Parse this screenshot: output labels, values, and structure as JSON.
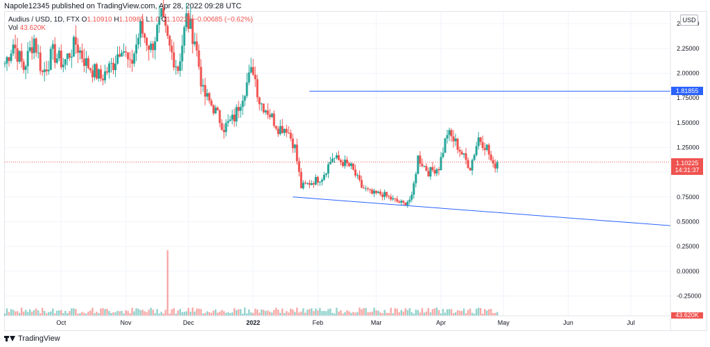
{
  "header": {
    "published_line": "Napole12345 published on TradingView.com, Apr 28, 2022 09:28 UTC"
  },
  "legend": {
    "symbol": "Audius / USD, 1D, FTX",
    "o_label": "O",
    "o": "1.10910",
    "h_label": "H",
    "h": "1.10985",
    "l_label": "L",
    "l": "1.0",
    "c_label": "C",
    "c": "1.10225",
    "change": "−0.00685 (−0.62%)",
    "vol_label": "Vol",
    "vol": "43.620K"
  },
  "currency_button": "USD",
  "footer": {
    "brand": "TradingView"
  },
  "colors": {
    "up": "#26a69a",
    "down": "#ef5350",
    "trendline": "#2962ff",
    "grid": "#f0f3fa"
  },
  "chart_data": {
    "type": "candlestick",
    "y_ticks": [
      "2.50000",
      "2.25000",
      "2.00000",
      "1.75000",
      "1.50000",
      "1.25000",
      "1.00000",
      "0.75000",
      "0.50000",
      "0.25000",
      "0.00000",
      "-0.25000"
    ],
    "ylim": [
      -0.45,
      2.62
    ],
    "x_ticks": [
      "Oct",
      "Nov",
      "Dec",
      "2022",
      "Feb",
      "Mar",
      "Apr",
      "May",
      "Jun",
      "Jul"
    ],
    "x_tick_dates": [
      "2021-10-01",
      "2021-11-01",
      "2021-12-01",
      "2022-01-01",
      "2022-02-01",
      "2022-03-01",
      "2022-04-01",
      "2022-05-01",
      "2022-06-01",
      "2022-07-01"
    ],
    "xlim": [
      "2021-09-04",
      "2022-07-20"
    ],
    "current_price": {
      "label": "1.10225",
      "countdown": "14:31:37",
      "value": 1.10225
    },
    "horizontal_line": {
      "label": "1.81855",
      "value": 1.81855,
      "start": "2022-01-28"
    },
    "trendline": {
      "start": {
        "date": "2022-01-20",
        "value": 0.75
      },
      "end": {
        "date": "2022-07-20",
        "value": 0.46
      }
    },
    "volume_label": "43.620K",
    "close_anchors": [
      [
        "2021-09-04",
        2.1
      ],
      [
        "2021-09-08",
        2.3
      ],
      [
        "2021-09-13",
        2.05
      ],
      [
        "2021-09-18",
        2.35
      ],
      [
        "2021-09-22",
        2.0
      ],
      [
        "2021-09-27",
        2.2
      ],
      [
        "2021-10-02",
        2.1
      ],
      [
        "2021-10-08",
        2.3
      ],
      [
        "2021-10-13",
        2.1
      ],
      [
        "2021-10-20",
        1.95
      ],
      [
        "2021-10-26",
        2.1
      ],
      [
        "2021-10-30",
        2.3
      ],
      [
        "2021-11-03",
        2.05
      ],
      [
        "2021-11-08",
        2.45
      ],
      [
        "2021-11-13",
        2.25
      ],
      [
        "2021-11-18",
        2.55
      ],
      [
        "2021-11-22",
        2.25
      ],
      [
        "2021-11-26",
        2.05
      ],
      [
        "2021-11-30",
        2.55
      ],
      [
        "2021-12-04",
        2.35
      ],
      [
        "2021-12-08",
        1.8
      ],
      [
        "2021-12-13",
        1.65
      ],
      [
        "2021-12-18",
        1.45
      ],
      [
        "2021-12-23",
        1.55
      ],
      [
        "2021-12-28",
        1.85
      ],
      [
        "2022-01-01",
        2.05
      ],
      [
        "2022-01-04",
        1.72
      ],
      [
        "2022-01-08",
        1.62
      ],
      [
        "2022-01-13",
        1.45
      ],
      [
        "2022-01-17",
        1.45
      ],
      [
        "2022-01-21",
        1.25
      ],
      [
        "2022-01-24",
        0.85
      ],
      [
        "2022-01-29",
        0.9
      ],
      [
        "2022-02-03",
        0.95
      ],
      [
        "2022-02-08",
        1.15
      ],
      [
        "2022-02-13",
        1.1
      ],
      [
        "2022-02-17",
        1.05
      ],
      [
        "2022-02-22",
        0.85
      ],
      [
        "2022-02-27",
        0.78
      ],
      [
        "2022-03-04",
        0.78
      ],
      [
        "2022-03-09",
        0.72
      ],
      [
        "2022-03-14",
        0.68
      ],
      [
        "2022-03-18",
        0.74
      ],
      [
        "2022-03-21",
        1.15
      ],
      [
        "2022-03-26",
        1.0
      ],
      [
        "2022-03-31",
        1.05
      ],
      [
        "2022-04-04",
        1.4
      ],
      [
        "2022-04-08",
        1.3
      ],
      [
        "2022-04-12",
        1.15
      ],
      [
        "2022-04-15",
        1.05
      ],
      [
        "2022-04-19",
        1.35
      ],
      [
        "2022-04-23",
        1.25
      ],
      [
        "2022-04-26",
        1.05
      ],
      [
        "2022-04-28",
        1.10225
      ]
    ],
    "volume_spike": {
      "date": "2021-11-21",
      "relative": 1.0
    }
  }
}
